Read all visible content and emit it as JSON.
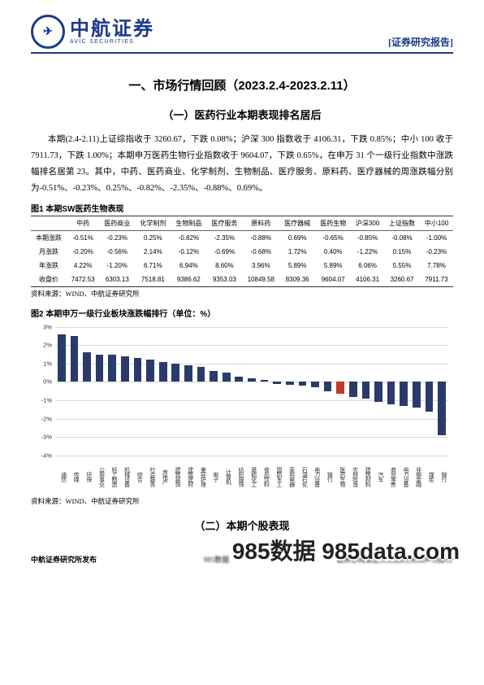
{
  "header": {
    "logo_cn": "中航证券",
    "logo_en": "AVIC SECURITIES",
    "logo_badge_text": "✈",
    "right_label": "[证券研究报告]"
  },
  "titles": {
    "h1": "一、市场行情回顾（2023.2.4-2023.2.11）",
    "h2_1": "（一）医药行业本期表现排名居后",
    "h2_2": "（二）本期个股表现"
  },
  "paragraph": "本期(2.4-2.11)上证综指收于 3260.67，下跌 0.08%；沪深 300 指数收于 4106.31，下跌 0.85%；中小 100 收于 7911.73，下跌 1.00%；本期申万医药生物行业指数收于 9604.07，下跌 0.65%，在申万 31 个一级行业指数中涨跌幅排名居第 23。其中，中药、医药商业、化学制剂、生物制品、医疗服务、原料药、医疗器械的周涨跌幅分别为-0.51%、-0.23%、0.25%、-0.82%、-2.35%、-0.88%、0.69%。",
  "table1": {
    "caption": "图1 本期SW医药生物表现",
    "columns": [
      "",
      "中药",
      "医药商业",
      "化学制剂",
      "生物制品",
      "医疗服务",
      "原料药",
      "医疗器械",
      "医药生物",
      "沪深300",
      "上证指数",
      "中小100"
    ],
    "rows": [
      {
        "label": "本期涨跌",
        "cells": [
          "-0.51%",
          "-0.23%",
          "0.25%",
          "-0.82%",
          "-2.35%",
          "-0.88%",
          "0.69%",
          "-0.65%",
          "-0.85%",
          "-0.08%",
          "-1.00%"
        ]
      },
      {
        "label": "月涨跌",
        "cells": [
          "-0.20%",
          "-0.56%",
          "2.14%",
          "-0.12%",
          "-0.69%",
          "-0.68%",
          "1.72%",
          "0.40%",
          "-1.22%",
          "0.15%",
          "-0.23%"
        ]
      },
      {
        "label": "年涨跌",
        "cells": [
          "4.22%",
          "-1.20%",
          "6.71%",
          "6.94%",
          "8.60%",
          "3.96%",
          "5.89%",
          "5.89%",
          "6.06%",
          "5.55%",
          "7.78%"
        ]
      },
      {
        "label": "收盘价",
        "cells": [
          "7472.53",
          "6303.13",
          "7518.81",
          "9386.62",
          "9353.03",
          "10849.58",
          "8309.36",
          "9604.07",
          "4106.31",
          "3260.67",
          "7911.73"
        ]
      }
    ],
    "source": "资料来源：WIND、中航证券研究所"
  },
  "chart2": {
    "caption": "图2 本期申万一级行业板块涨跌幅排行（单位：%）",
    "type": "bar",
    "ylim": [
      -4,
      3
    ],
    "ytick_step": 1,
    "ytick_labels": [
      "-4%",
      "-3%",
      "-2%",
      "-1%",
      "0%",
      "1%",
      "2%",
      "3%"
    ],
    "grid_color": "#d8d8d8",
    "background": "#ffffff",
    "default_color": "#2a3b6b",
    "highlight_color": "#c0392b",
    "highlight_index": 22,
    "categories": [
      "通信",
      "传媒",
      "环保",
      "公用事业",
      "轻工制造",
      "机械设备",
      "综合",
      "社会服务",
      "房地产",
      "建筑装饰",
      "建筑建材",
      "美容护理",
      "电子",
      "计算机",
      "纺织服饰",
      "基础化工",
      "食品饮料",
      "国防军工",
      "家用电器",
      "石油石化",
      "电力设备",
      "银行",
      "医药生物",
      "农林牧渔",
      "建筑材料",
      "汽车",
      "商贸零售",
      "电力设备",
      "非银金融",
      "煤炭",
      "银行"
    ],
    "values": [
      2.6,
      2.5,
      1.6,
      1.5,
      1.5,
      1.4,
      1.3,
      1.2,
      1.1,
      1.0,
      0.9,
      0.8,
      0.6,
      0.5,
      0.3,
      0.2,
      0.1,
      -0.1,
      -0.15,
      -0.2,
      -0.3,
      -0.5,
      -0.65,
      -0.8,
      -0.9,
      -1.1,
      -1.2,
      -1.3,
      -1.4,
      -1.6,
      -2.9
    ],
    "source": "资料来源：WIND、中航证券研究所"
  },
  "footer": {
    "left": "中航证券研究所发布",
    "center_blur": "985数据",
    "right_blur": "请务必阅读正文之后的免责声明部分"
  },
  "watermark": "985数据 985data.com"
}
